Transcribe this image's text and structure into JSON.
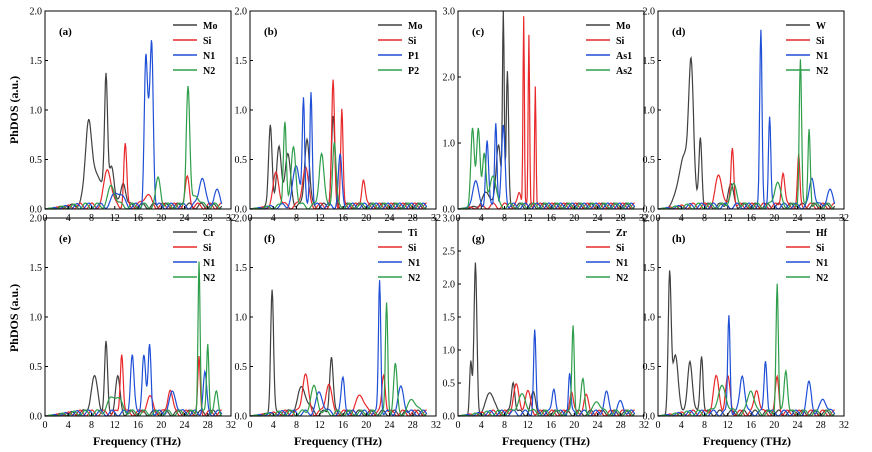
{
  "figure": {
    "ylabel": "PhDOS (a.u.)",
    "xlabel": "Frequency (THz)",
    "colors": {
      "black": "#404040",
      "red": "#e8282a",
      "blue": "#1f4fd6",
      "green": "#2e9e4a"
    }
  },
  "chart_data": [
    {
      "type": "line",
      "panel": "(a)",
      "xlim": [
        0,
        32
      ],
      "ylim": [
        0,
        2.0
      ],
      "xticks": [
        0,
        4,
        8,
        12,
        16,
        20,
        24,
        28,
        32
      ],
      "yticks": [
        0.0,
        0.5,
        1.0,
        1.5,
        2.0
      ],
      "series": [
        {
          "name": "Mo",
          "color": "#404040",
          "peaks": [
            [
              7.5,
              0.72,
              0.5
            ],
            [
              10.5,
              1.12,
              0.25
            ],
            [
              11.5,
              0.35,
              0.4
            ],
            [
              13.5,
              0.25,
              0.4
            ],
            [
              9,
              0.3,
              1.5
            ]
          ]
        },
        {
          "name": "Si",
          "color": "#e8282a",
          "peaks": [
            [
              10.8,
              0.38,
              0.6
            ],
            [
              13.8,
              0.62,
              0.25
            ],
            [
              17.5,
              0.12,
              0.6
            ],
            [
              24.5,
              0.28,
              0.35
            ]
          ]
        },
        {
          "name": "N1",
          "color": "#1f4fd6",
          "peaks": [
            [
              17.3,
              1.22,
              0.25
            ],
            [
              18.4,
              1.27,
              0.25
            ],
            [
              17.9,
              0.85,
              0.4
            ],
            [
              27,
              0.3,
              0.5
            ],
            [
              29.5,
              0.15,
              0.5
            ],
            [
              12.5,
              0.15,
              0.8
            ]
          ]
        },
        {
          "name": "N2",
          "color": "#2e9e4a",
          "peaks": [
            [
              24.6,
              1.22,
              0.3
            ],
            [
              19.5,
              0.28,
              0.4
            ],
            [
              11.5,
              0.2,
              0.6
            ],
            [
              26,
              0.12,
              0.5
            ]
          ]
        }
      ]
    },
    {
      "type": "line",
      "panel": "(b)",
      "xlim": [
        0,
        32
      ],
      "ylim": [
        0,
        2.0
      ],
      "xticks": [
        0,
        4,
        8,
        12,
        16,
        20,
        24,
        28,
        32
      ],
      "yticks": [
        0.0,
        0.5,
        1.0,
        1.5,
        2.0
      ],
      "series": [
        {
          "name": "Mo",
          "color": "#404040",
          "peaks": [
            [
              3.5,
              0.85,
              0.3
            ],
            [
              5,
              0.6,
              0.4
            ],
            [
              6.5,
              0.5,
              0.5
            ],
            [
              9.8,
              0.7,
              0.4
            ],
            [
              14.3,
              0.9,
              0.3
            ]
          ]
        },
        {
          "name": "Si",
          "color": "#e8282a",
          "peaks": [
            [
              4.5,
              0.35,
              0.5
            ],
            [
              9.5,
              0.4,
              0.5
            ],
            [
              14.3,
              1.25,
              0.25
            ],
            [
              15.8,
              0.97,
              0.2
            ],
            [
              19.5,
              0.28,
              0.3
            ]
          ]
        },
        {
          "name": "P1",
          "color": "#1f4fd6",
          "peaks": [
            [
              9.2,
              1.03,
              0.2
            ],
            [
              10.5,
              1.18,
              0.2
            ],
            [
              8,
              0.4,
              0.6
            ],
            [
              15.5,
              0.5,
              0.3
            ]
          ]
        },
        {
          "name": "P2",
          "color": "#2e9e4a",
          "peaks": [
            [
              6,
              0.88,
              0.25
            ],
            [
              7.5,
              0.6,
              0.4
            ],
            [
              12.3,
              0.55,
              0.4
            ],
            [
              14.5,
              0.65,
              0.3
            ]
          ]
        }
      ]
    },
    {
      "type": "line",
      "panel": "(c)",
      "xlim": [
        0,
        32
      ],
      "ylim": [
        0,
        3.0
      ],
      "xticks": [
        0,
        4,
        8,
        12,
        16,
        20,
        24,
        28,
        32
      ],
      "yticks": [
        0.0,
        1.0,
        2.0,
        3.0
      ],
      "series": [
        {
          "name": "Mo",
          "color": "#404040",
          "peaks": [
            [
              7.8,
              2.95,
              0.15
            ],
            [
              8.5,
              2.0,
              0.2
            ],
            [
              7,
              0.9,
              0.4
            ],
            [
              5,
              0.2,
              0.8
            ]
          ]
        },
        {
          "name": "Si",
          "color": "#e8282a",
          "peaks": [
            [
              11.3,
              2.9,
              0.12
            ],
            [
              12.2,
              2.55,
              0.12
            ],
            [
              13.3,
              1.85,
              0.12
            ],
            [
              10.6,
              0.2,
              0.3
            ]
          ]
        },
        {
          "name": "As1",
          "color": "#1f4fd6",
          "peaks": [
            [
              5,
              1.0,
              0.25
            ],
            [
              6.5,
              1.3,
              0.2
            ],
            [
              7.8,
              1.2,
              0.3
            ],
            [
              3,
              0.4,
              0.5
            ]
          ]
        },
        {
          "name": "As2",
          "color": "#2e9e4a",
          "peaks": [
            [
              2.5,
              1.2,
              0.3
            ],
            [
              3.5,
              1.2,
              0.3
            ],
            [
              4.5,
              0.8,
              0.3
            ],
            [
              6,
              0.5,
              0.5
            ]
          ]
        }
      ]
    },
    {
      "type": "line",
      "panel": "(d)",
      "xlim": [
        0,
        32
      ],
      "ylim": [
        0,
        2.0
      ],
      "xticks": [
        0,
        4,
        8,
        12,
        16,
        20,
        24,
        28,
        32
      ],
      "yticks": [
        0.0,
        0.5,
        1.0,
        1.5,
        2.0
      ],
      "series": [
        {
          "name": "W",
          "color": "#404040",
          "peaks": [
            [
              5.7,
              1.28,
              0.4
            ],
            [
              7.3,
              0.7,
              0.25
            ],
            [
              4.5,
              0.5,
              1.0
            ],
            [
              12.5,
              0.2,
              0.5
            ]
          ]
        },
        {
          "name": "Si",
          "color": "#e8282a",
          "peaks": [
            [
              12.8,
              0.6,
              0.25
            ],
            [
              10.5,
              0.3,
              0.6
            ],
            [
              21.5,
              0.35,
              0.3
            ],
            [
              24.2,
              0.5,
              0.2
            ]
          ]
        },
        {
          "name": "N1",
          "color": "#1f4fd6",
          "peaks": [
            [
              17.7,
              1.75,
              0.2
            ],
            [
              19.2,
              0.9,
              0.2
            ],
            [
              26.5,
              0.3,
              0.4
            ],
            [
              29.5,
              0.15,
              0.5
            ]
          ]
        },
        {
          "name": "N2",
          "color": "#2e9e4a",
          "peaks": [
            [
              24.5,
              1.5,
              0.2
            ],
            [
              26,
              0.8,
              0.2
            ],
            [
              20.5,
              0.25,
              0.5
            ],
            [
              13,
              0.2,
              0.6
            ]
          ]
        }
      ]
    },
    {
      "type": "line",
      "panel": "(e)",
      "xlim": [
        0,
        32
      ],
      "ylim": [
        0,
        2.0
      ],
      "xticks": [
        0,
        4,
        8,
        12,
        16,
        20,
        24,
        28,
        32
      ],
      "yticks": [
        0.0,
        0.5,
        1.0,
        1.5,
        2.0
      ],
      "series": [
        {
          "name": "Cr",
          "color": "#404040",
          "peaks": [
            [
              10.5,
              0.7,
              0.25
            ],
            [
              8.5,
              0.35,
              0.6
            ],
            [
              12.5,
              0.35,
              0.4
            ]
          ]
        },
        {
          "name": "Si",
          "color": "#e8282a",
          "peaks": [
            [
              13.2,
              0.62,
              0.25
            ],
            [
              21.5,
              0.25,
              0.4
            ],
            [
              26.5,
              0.55,
              0.2
            ],
            [
              18,
              0.15,
              0.6
            ]
          ]
        },
        {
          "name": "N1",
          "color": "#1f4fd6",
          "peaks": [
            [
              15,
              0.6,
              0.3
            ],
            [
              17,
              0.6,
              0.3
            ],
            [
              18,
              0.68,
              0.25
            ],
            [
              27.5,
              0.4,
              0.3
            ],
            [
              22,
              0.2,
              0.6
            ]
          ]
        },
        {
          "name": "N2",
          "color": "#2e9e4a",
          "peaks": [
            [
              26.5,
              1.55,
              0.18
            ],
            [
              28,
              0.72,
              0.2
            ],
            [
              29.5,
              0.2,
              0.3
            ],
            [
              12,
              0.18,
              1.0
            ]
          ]
        }
      ]
    },
    {
      "type": "line",
      "panel": "(f)",
      "xlim": [
        0,
        32
      ],
      "ylim": [
        0,
        2.0
      ],
      "xticks": [
        0,
        4,
        8,
        12,
        16,
        20,
        24,
        28,
        32
      ],
      "yticks": [
        0.0,
        0.5,
        1.0,
        1.5,
        2.0
      ],
      "series": [
        {
          "name": "Ti",
          "color": "#404040",
          "peaks": [
            [
              3.8,
              1.27,
              0.25
            ],
            [
              14,
              0.58,
              0.3
            ],
            [
              9,
              0.25,
              0.8
            ]
          ]
        },
        {
          "name": "Si",
          "color": "#e8282a",
          "peaks": [
            [
              9.5,
              0.4,
              0.5
            ],
            [
              13.5,
              0.3,
              0.5
            ],
            [
              23,
              0.4,
              0.3
            ],
            [
              19,
              0.2,
              0.6
            ]
          ]
        },
        {
          "name": "N1",
          "color": "#1f4fd6",
          "peaks": [
            [
              22.3,
              1.35,
              0.2
            ],
            [
              16,
              0.35,
              0.3
            ],
            [
              26,
              0.25,
              0.5
            ],
            [
              12,
              0.2,
              0.6
            ]
          ]
        },
        {
          "name": "N2",
          "color": "#2e9e4a",
          "peaks": [
            [
              23.5,
              1.1,
              0.2
            ],
            [
              25,
              0.48,
              0.3
            ],
            [
              11,
              0.25,
              0.6
            ],
            [
              28,
              0.15,
              0.6
            ]
          ]
        }
      ]
    },
    {
      "type": "line",
      "panel": "(g)",
      "xlim": [
        0,
        32
      ],
      "ylim": [
        0,
        3.0
      ],
      "xticks": [
        0,
        4,
        8,
        12,
        16,
        20,
        24,
        28,
        32
      ],
      "yticks": [
        0.0,
        0.5,
        1.0,
        1.5,
        2.0,
        2.5,
        3.0
      ],
      "series": [
        {
          "name": "Zr",
          "color": "#404040",
          "peaks": [
            [
              3,
              2.3,
              0.25
            ],
            [
              2.2,
              0.8,
              0.2
            ],
            [
              5.5,
              0.35,
              0.6
            ],
            [
              9.5,
              0.5,
              0.3
            ],
            [
              13,
              0.3,
              0.4
            ]
          ]
        },
        {
          "name": "Si",
          "color": "#e8282a",
          "peaks": [
            [
              10,
              0.4,
              0.5
            ],
            [
              12,
              0.3,
              0.5
            ],
            [
              19.5,
              0.35,
              0.3
            ],
            [
              22,
              0.25,
              0.4
            ]
          ]
        },
        {
          "name": "N1",
          "color": "#1f4fd6",
          "peaks": [
            [
              13.2,
              1.25,
              0.2
            ],
            [
              16.5,
              0.4,
              0.3
            ],
            [
              19.2,
              0.6,
              0.2
            ],
            [
              25.5,
              0.3,
              0.4
            ],
            [
              28,
              0.15,
              0.5
            ]
          ]
        },
        {
          "name": "N2",
          "color": "#2e9e4a",
          "peaks": [
            [
              19.8,
              1.35,
              0.2
            ],
            [
              21.5,
              0.5,
              0.3
            ],
            [
              11,
              0.25,
              0.8
            ],
            [
              24,
              0.2,
              0.5
            ]
          ]
        }
      ]
    },
    {
      "type": "line",
      "panel": "(h)",
      "xlim": [
        0,
        32
      ],
      "ylim": [
        0,
        2.0
      ],
      "xticks": [
        0,
        4,
        8,
        12,
        16,
        20,
        24,
        28,
        32
      ],
      "yticks": [
        0.0,
        0.5,
        1.0,
        1.5,
        2.0
      ],
      "series": [
        {
          "name": "Hf",
          "color": "#404040",
          "peaks": [
            [
              2,
              1.38,
              0.25
            ],
            [
              5.5,
              0.55,
              0.4
            ],
            [
              7.5,
              0.6,
              0.25
            ],
            [
              3,
              0.6,
              0.5
            ]
          ]
        },
        {
          "name": "Si",
          "color": "#e8282a",
          "peaks": [
            [
              10,
              0.35,
              0.5
            ],
            [
              12,
              0.35,
              0.4
            ],
            [
              17,
              0.25,
              0.4
            ],
            [
              20.5,
              0.35,
              0.3
            ]
          ]
        },
        {
          "name": "N1",
          "color": "#1f4fd6",
          "peaks": [
            [
              12.2,
              1.0,
              0.2
            ],
            [
              14.5,
              0.4,
              0.4
            ],
            [
              18.5,
              0.55,
              0.25
            ],
            [
              26,
              0.3,
              0.4
            ],
            [
              28.5,
              0.15,
              0.5
            ]
          ]
        },
        {
          "name": "N2",
          "color": "#2e9e4a",
          "peaks": [
            [
              20.5,
              1.32,
              0.2
            ],
            [
              22,
              0.45,
              0.3
            ],
            [
              11,
              0.25,
              0.8
            ],
            [
              16,
              0.25,
              0.5
            ]
          ]
        }
      ]
    }
  ]
}
